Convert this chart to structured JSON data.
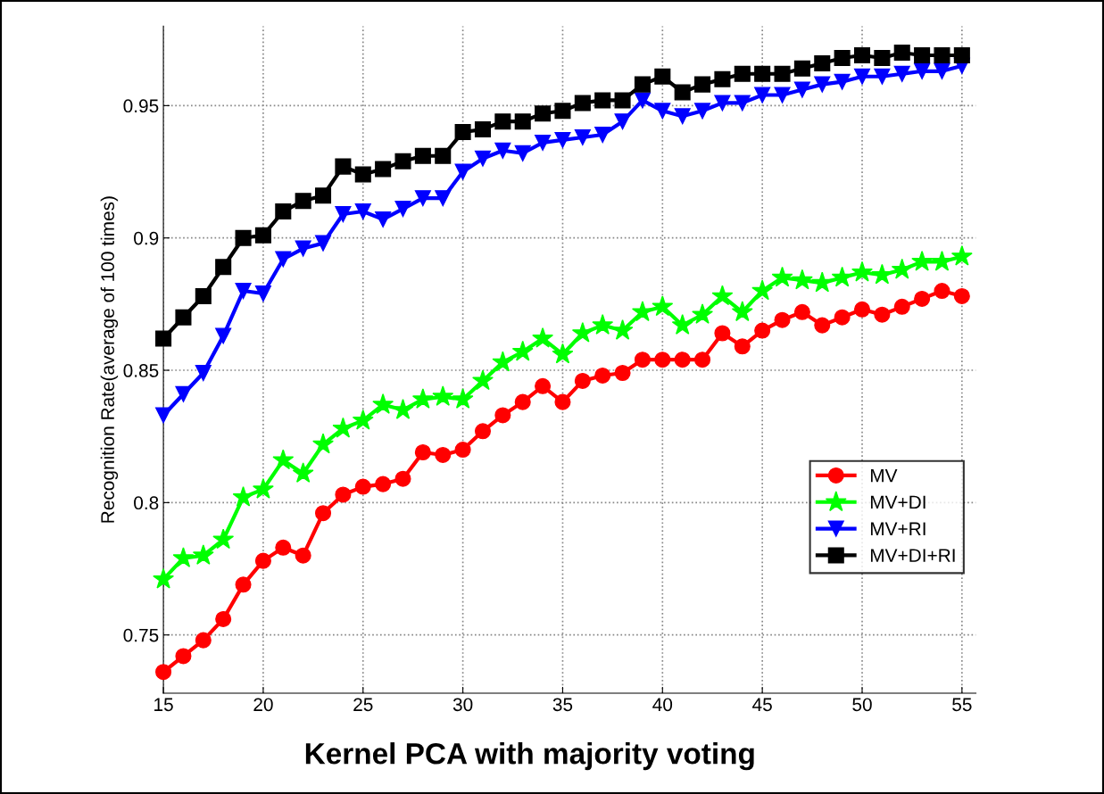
{
  "chart_data": {
    "type": "line",
    "title": "Kernel PCA with majority voting",
    "ylabel": "Recognition Rate(average of 100 times)",
    "x": [
      15,
      16,
      17,
      18,
      19,
      20,
      21,
      22,
      23,
      24,
      25,
      26,
      27,
      28,
      29,
      30,
      31,
      32,
      33,
      34,
      35,
      36,
      37,
      38,
      39,
      40,
      41,
      42,
      43,
      44,
      45,
      46,
      47,
      48,
      49,
      50,
      51,
      52,
      53,
      54,
      55
    ],
    "series": [
      {
        "name": "MV",
        "color": "#ff0000",
        "marker": "circle",
        "values": [
          0.736,
          0.742,
          0.748,
          0.756,
          0.769,
          0.778,
          0.783,
          0.78,
          0.796,
          0.803,
          0.806,
          0.807,
          0.809,
          0.819,
          0.818,
          0.82,
          0.827,
          0.833,
          0.838,
          0.844,
          0.838,
          0.846,
          0.848,
          0.849,
          0.854,
          0.854,
          0.854,
          0.854,
          0.864,
          0.859,
          0.865,
          0.869,
          0.872,
          0.867,
          0.87,
          0.873,
          0.871,
          0.874,
          0.877,
          0.88,
          0.878
        ]
      },
      {
        "name": "MV+DI",
        "color": "#00ff00",
        "marker": "star",
        "values": [
          0.771,
          0.779,
          0.78,
          0.786,
          0.802,
          0.805,
          0.816,
          0.811,
          0.822,
          0.828,
          0.831,
          0.837,
          0.835,
          0.839,
          0.84,
          0.839,
          0.846,
          0.853,
          0.857,
          0.862,
          0.856,
          0.864,
          0.867,
          0.865,
          0.872,
          0.874,
          0.867,
          0.871,
          0.878,
          0.872,
          0.88,
          0.885,
          0.884,
          0.883,
          0.885,
          0.887,
          0.886,
          0.888,
          0.891,
          0.891,
          0.893
        ]
      },
      {
        "name": "MV+RI",
        "color": "#0000ff",
        "marker": "triangle",
        "values": [
          0.833,
          0.841,
          0.849,
          0.863,
          0.88,
          0.879,
          0.892,
          0.896,
          0.898,
          0.909,
          0.91,
          0.907,
          0.911,
          0.915,
          0.915,
          0.925,
          0.93,
          0.933,
          0.932,
          0.936,
          0.937,
          0.938,
          0.939,
          0.944,
          0.952,
          0.948,
          0.946,
          0.948,
          0.951,
          0.951,
          0.954,
          0.954,
          0.956,
          0.958,
          0.959,
          0.961,
          0.961,
          0.962,
          0.963,
          0.963,
          0.965
        ]
      },
      {
        "name": "MV+DI+RI",
        "color": "#000000",
        "marker": "square",
        "values": [
          0.862,
          0.87,
          0.878,
          0.889,
          0.9,
          0.901,
          0.91,
          0.914,
          0.916,
          0.927,
          0.924,
          0.926,
          0.929,
          0.931,
          0.931,
          0.94,
          0.941,
          0.944,
          0.944,
          0.947,
          0.948,
          0.951,
          0.952,
          0.952,
          0.958,
          0.961,
          0.955,
          0.958,
          0.96,
          0.962,
          0.962,
          0.962,
          0.964,
          0.966,
          0.968,
          0.969,
          0.968,
          0.97,
          0.969,
          0.969,
          0.969
        ]
      }
    ],
    "xlim": [
      15,
      55.7
    ],
    "ylim": [
      0.728,
      0.98
    ],
    "xticks": [
      15,
      20,
      25,
      30,
      35,
      40,
      45,
      50,
      55
    ],
    "yticks": [
      0.75,
      0.8,
      0.85,
      0.9,
      0.95
    ],
    "grid": true,
    "legend": "lower right",
    "line_style": "solid"
  }
}
